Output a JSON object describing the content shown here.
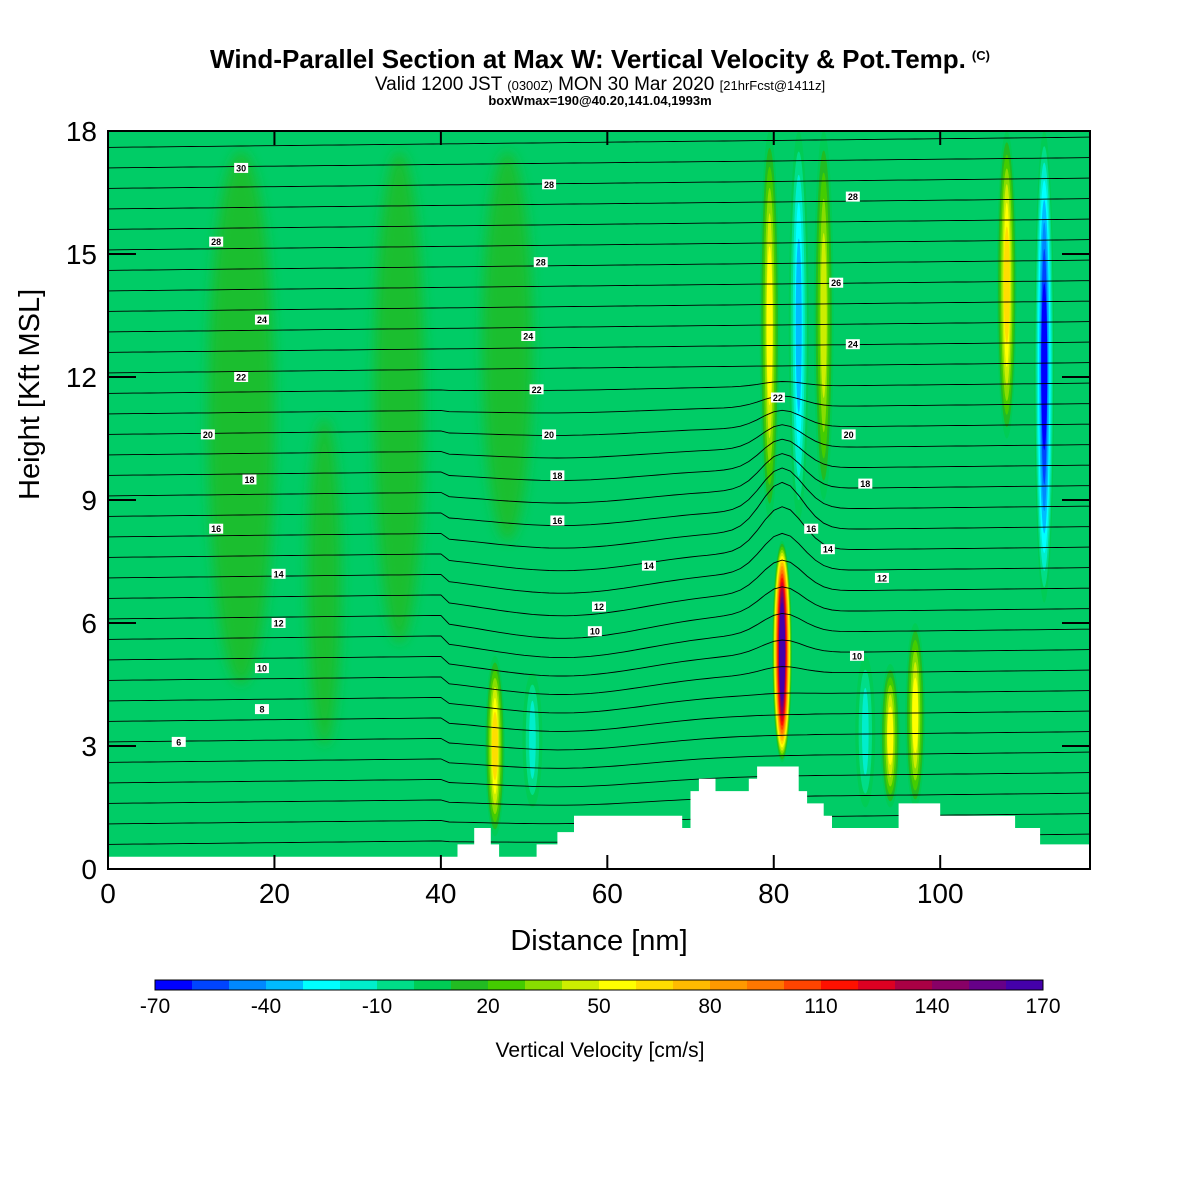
{
  "title": {
    "main": "Wind-Parallel Section at Max W: Vertical Velocity & Pot.Temp.",
    "copyright": "(C)",
    "valid_prefix": "Valid 1200 JST",
    "valid_utc": "(0300Z)",
    "valid_date": "MON 30 Mar 2020",
    "forecast": "[21hrFcst@1411z]",
    "box_info": "boxWmax=190@40.20,141.04,1993m"
  },
  "colors": {
    "background_w": "#00cc66",
    "contour_line": "#000000",
    "terrain": "#ffffff"
  },
  "chart_data": {
    "type": "heatmap",
    "xlabel": "Distance [nm]",
    "ylabel": "Height [Kft MSL]",
    "xlim": [
      0,
      118
    ],
    "ylim": [
      0,
      18
    ],
    "x_ticks": [
      0,
      20,
      40,
      60,
      80,
      100
    ],
    "y_ticks": [
      0,
      3,
      6,
      9,
      12,
      15,
      18
    ],
    "colorbar": {
      "label": "Vertical Velocity [cm/s]",
      "ticks": [
        -70,
        -40,
        -10,
        20,
        50,
        80,
        110,
        140,
        170
      ],
      "levels": [
        -70,
        -60,
        -50,
        -40,
        -30,
        -20,
        -10,
        0,
        10,
        20,
        30,
        40,
        50,
        60,
        70,
        80,
        90,
        100,
        110,
        120,
        130,
        140,
        150,
        160,
        170
      ],
      "colors": [
        "#0000ff",
        "#0044ff",
        "#0088ff",
        "#00bbff",
        "#00ffff",
        "#00eecc",
        "#00dd88",
        "#00cc55",
        "#22bb22",
        "#44cc00",
        "#88dd00",
        "#ccee00",
        "#ffff00",
        "#ffdd00",
        "#ffbb00",
        "#ff9900",
        "#ff7700",
        "#ff4400",
        "#ff1100",
        "#dd0022",
        "#aa0044",
        "#880066",
        "#660088",
        "#4400aa"
      ]
    },
    "w_features": [
      {
        "x": 46.5,
        "z_bottom": 0.8,
        "z_top": 5.2,
        "w_max": 60
      },
      {
        "x": 51,
        "z_bottom": 1.5,
        "z_top": 4.8,
        "w_max": -20
      },
      {
        "x": 81,
        "z_bottom": 2.6,
        "z_top": 8.0,
        "w_max": 190
      },
      {
        "x": 79.5,
        "z_bottom": 8.5,
        "z_top": 18,
        "w_max": 55
      },
      {
        "x": 83,
        "z_bottom": 8.5,
        "z_top": 18,
        "w_max": -40
      },
      {
        "x": 86,
        "z_bottom": 9,
        "z_top": 18,
        "w_max": 45
      },
      {
        "x": 91,
        "z_bottom": 1.5,
        "z_top": 5.2,
        "w_max": -25
      },
      {
        "x": 94,
        "z_bottom": 1.5,
        "z_top": 5.0,
        "w_max": 55
      },
      {
        "x": 97,
        "z_bottom": 1.5,
        "z_top": 6.0,
        "w_max": 50
      },
      {
        "x": 108,
        "z_bottom": 10.5,
        "z_top": 18,
        "w_max": 60
      },
      {
        "x": 112.5,
        "z_bottom": 6.5,
        "z_top": 18,
        "w_max": -70
      }
    ],
    "terrain": {
      "x": [
        0,
        40,
        42,
        44,
        46,
        47,
        51,
        51.5,
        54,
        56,
        57,
        68,
        69,
        70,
        71,
        72,
        73,
        74,
        77,
        78,
        82,
        83,
        84,
        86,
        87,
        94,
        95,
        99,
        100,
        108,
        109,
        112,
        113,
        118
      ],
      "z": [
        0.3,
        0.3,
        0.6,
        1.0,
        0.6,
        0.3,
        0.3,
        0.6,
        0.9,
        1.3,
        1.3,
        1.3,
        1.0,
        1.9,
        2.2,
        2.2,
        1.9,
        1.9,
        2.2,
        2.5,
        2.5,
        1.9,
        1.6,
        1.3,
        1.0,
        1.0,
        1.6,
        1.6,
        1.3,
        1.3,
        1.0,
        0.6,
        0.6,
        0.3
      ]
    },
    "contour_labels": [
      {
        "x": 16,
        "z": 17.1,
        "text": "30"
      },
      {
        "x": 53,
        "z": 16.7,
        "text": "28"
      },
      {
        "x": 89.5,
        "z": 16.4,
        "text": "28"
      },
      {
        "x": 13,
        "z": 15.3,
        "text": "28"
      },
      {
        "x": 52,
        "z": 14.8,
        "text": "28"
      },
      {
        "x": 87.5,
        "z": 14.3,
        "text": "26"
      },
      {
        "x": 18.5,
        "z": 13.4,
        "text": "24"
      },
      {
        "x": 50.5,
        "z": 13.0,
        "text": "24"
      },
      {
        "x": 89.5,
        "z": 12.8,
        "text": "24"
      },
      {
        "x": 16,
        "z": 12.0,
        "text": "22"
      },
      {
        "x": 51.5,
        "z": 11.7,
        "text": "22"
      },
      {
        "x": 80.5,
        "z": 11.5,
        "text": "22"
      },
      {
        "x": 12,
        "z": 10.6,
        "text": "20"
      },
      {
        "x": 53,
        "z": 10.6,
        "text": "20"
      },
      {
        "x": 89,
        "z": 10.6,
        "text": "20"
      },
      {
        "x": 17,
        "z": 9.5,
        "text": "18"
      },
      {
        "x": 54,
        "z": 9.6,
        "text": "18"
      },
      {
        "x": 91,
        "z": 9.4,
        "text": "18"
      },
      {
        "x": 13,
        "z": 8.3,
        "text": "16"
      },
      {
        "x": 54,
        "z": 8.5,
        "text": "16"
      },
      {
        "x": 84.5,
        "z": 8.3,
        "text": "16"
      },
      {
        "x": 86.5,
        "z": 7.8,
        "text": "14"
      },
      {
        "x": 20.5,
        "z": 7.2,
        "text": "14"
      },
      {
        "x": 65,
        "z": 7.4,
        "text": "14"
      },
      {
        "x": 93,
        "z": 7.1,
        "text": "12"
      },
      {
        "x": 59,
        "z": 6.4,
        "text": "12"
      },
      {
        "x": 20.5,
        "z": 6.0,
        "text": "12"
      },
      {
        "x": 58.5,
        "z": 5.8,
        "text": "10"
      },
      {
        "x": 18.5,
        "z": 4.9,
        "text": "10"
      },
      {
        "x": 90,
        "z": 5.2,
        "text": "10"
      },
      {
        "x": 18.5,
        "z": 3.9,
        "text": "8"
      },
      {
        "x": 8.5,
        "z": 3.1,
        "text": "6"
      }
    ]
  }
}
